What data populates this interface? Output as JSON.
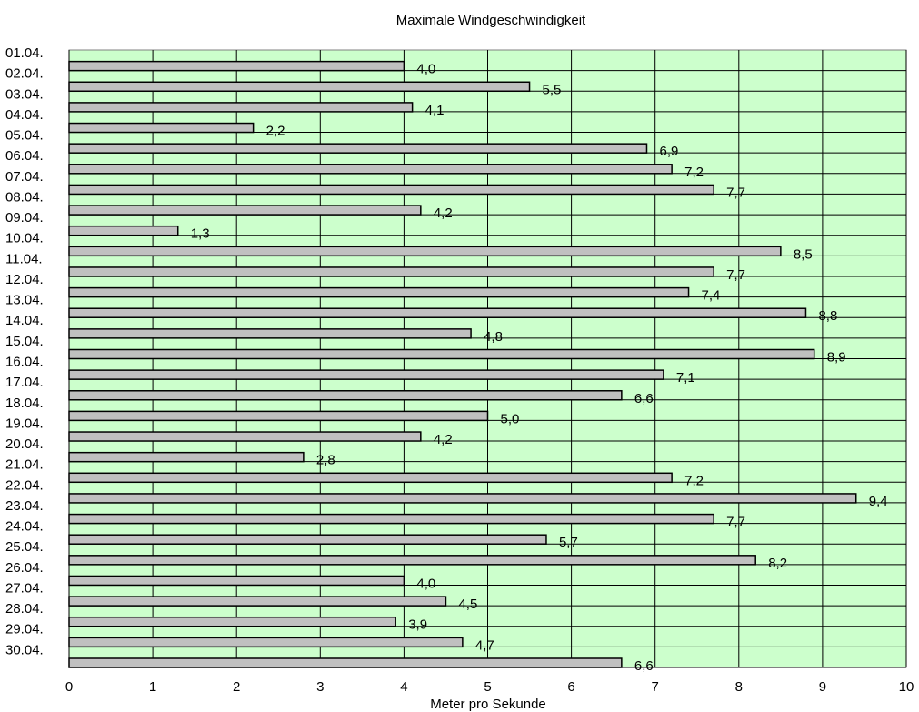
{
  "chart_data": {
    "type": "bar",
    "orientation": "horizontal",
    "title": "Maximale  Windgeschwindigkeit",
    "xlabel": "Meter pro Sekunde",
    "ylabel": "",
    "xlim": [
      0,
      10
    ],
    "x_ticks": [
      "0",
      "1",
      "2",
      "3",
      "4",
      "5",
      "6",
      "7",
      "8",
      "9",
      "10"
    ],
    "grid": true,
    "legend": "none",
    "categories": [
      "01.04.",
      "02.04.",
      "03.04.",
      "04.04.",
      "05.04.",
      "06.04.",
      "07.04.",
      "08.04.",
      "09.04.",
      "10.04.",
      "11.04.",
      "12.04.",
      "13.04.",
      "14.04.",
      "15.04.",
      "16.04.",
      "17.04.",
      "18.04.",
      "19.04.",
      "20.04.",
      "21.04.",
      "22.04.",
      "23.04.",
      "24.04.",
      "25.04.",
      "26.04.",
      "27.04.",
      "28.04.",
      "29.04.",
      "30.04."
    ],
    "values": [
      4.0,
      5.5,
      4.1,
      2.2,
      6.9,
      7.2,
      7.7,
      4.2,
      1.3,
      8.5,
      7.7,
      7.4,
      8.8,
      4.8,
      8.9,
      7.1,
      6.6,
      5.0,
      4.2,
      2.8,
      7.2,
      9.4,
      7.7,
      5.7,
      8.2,
      4.0,
      4.5,
      3.9,
      4.7,
      6.6
    ],
    "value_labels": [
      "4,0",
      "5,5",
      "4,1",
      "2,2",
      "6,9",
      "7,2",
      "7,7",
      "4,2",
      "1,3",
      "8,5",
      "7,7",
      "7,4",
      "8,8",
      "4,8",
      "8,9",
      "7,1",
      "6,6",
      "5,0",
      "4,2",
      "2,8",
      "7,2",
      "9,4",
      "7,7",
      "5,7",
      "8,2",
      "4,0",
      "4,5",
      "3,9",
      "4,7",
      "6,6"
    ],
    "colors": {
      "plot_background": "#ccffcc",
      "bar_fill": "#c0c0c0",
      "bar_stroke": "#000000",
      "grid": "#000000"
    }
  }
}
